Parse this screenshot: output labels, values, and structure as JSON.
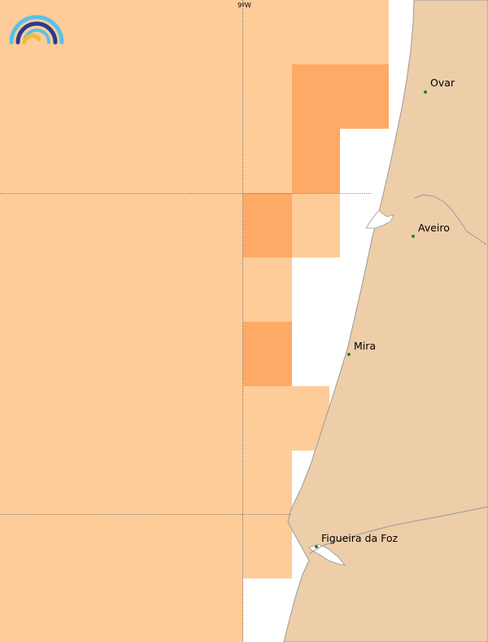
{
  "map": {
    "grid_label": "9ºW",
    "colors": {
      "land": "#eecda9",
      "coast": "#9a9a9a",
      "sea": "#ffffff",
      "cell_light": "#fecc99",
      "cell_dark": "#fea965",
      "gridline": "#444444",
      "city_dot": "#1e8a1e"
    },
    "cities": [
      {
        "name": "Ovar"
      },
      {
        "name": "Aveiro"
      },
      {
        "name": "Mira"
      },
      {
        "name": "Figueira da Foz"
      }
    ],
    "logo": {
      "icon": "rainbow-arcs-icon"
    }
  }
}
